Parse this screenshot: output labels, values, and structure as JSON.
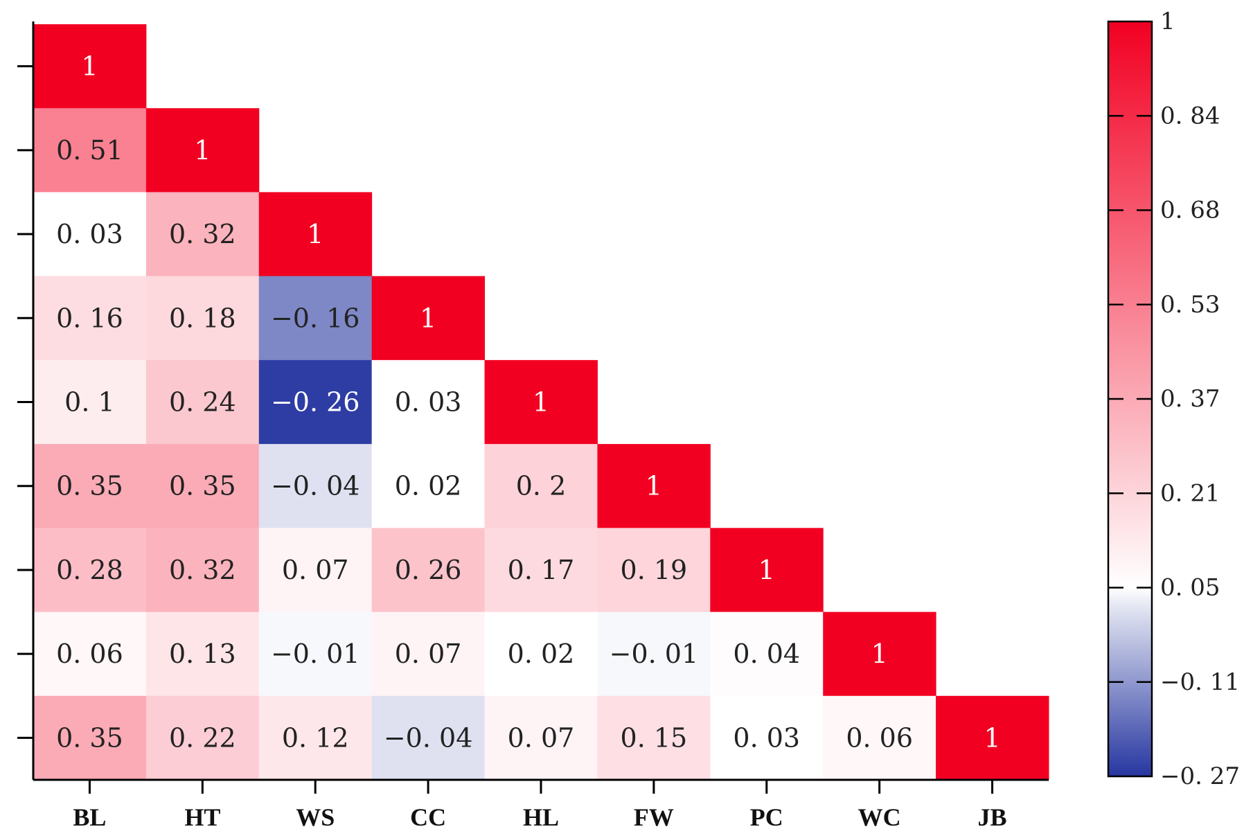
{
  "chart_data": {
    "type": "heatmap",
    "title": "",
    "variables": [
      "BL",
      "HT",
      "WS",
      "CC",
      "HL",
      "FW",
      "PC",
      "WC",
      "JB"
    ],
    "matrix": [
      [
        "1"
      ],
      [
        "0.51",
        "1"
      ],
      [
        "0.03",
        "0.32",
        "1"
      ],
      [
        "0.16",
        "0.18",
        "-0.16",
        "1"
      ],
      [
        "0.1",
        "0.24",
        "-0.26",
        "0.03",
        "1"
      ],
      [
        "0.35",
        "0.35",
        "-0.04",
        "0.02",
        "0.2",
        "1"
      ],
      [
        "0.28",
        "0.32",
        "0.07",
        "0.26",
        "0.17",
        "0.19",
        "1"
      ],
      [
        "0.06",
        "0.13",
        "-0.01",
        "0.07",
        "0.02",
        "-0.01",
        "0.04",
        "1"
      ],
      [
        "0.35",
        "0.22",
        "0.12",
        "-0.04",
        "0.07",
        "0.15",
        "0.03",
        "0.06",
        "1"
      ]
    ],
    "layout": "lower-triangle",
    "colorbar": {
      "range": [
        -0.27,
        1
      ],
      "ticks": [
        "1",
        "0.84",
        "0.68",
        "0.53",
        "0.37",
        "0.21",
        "0.05",
        "-0.11",
        "-0.27"
      ],
      "colors": {
        "low": "#2636a0",
        "mid": "#ffffff",
        "high": "#f20022"
      }
    }
  }
}
